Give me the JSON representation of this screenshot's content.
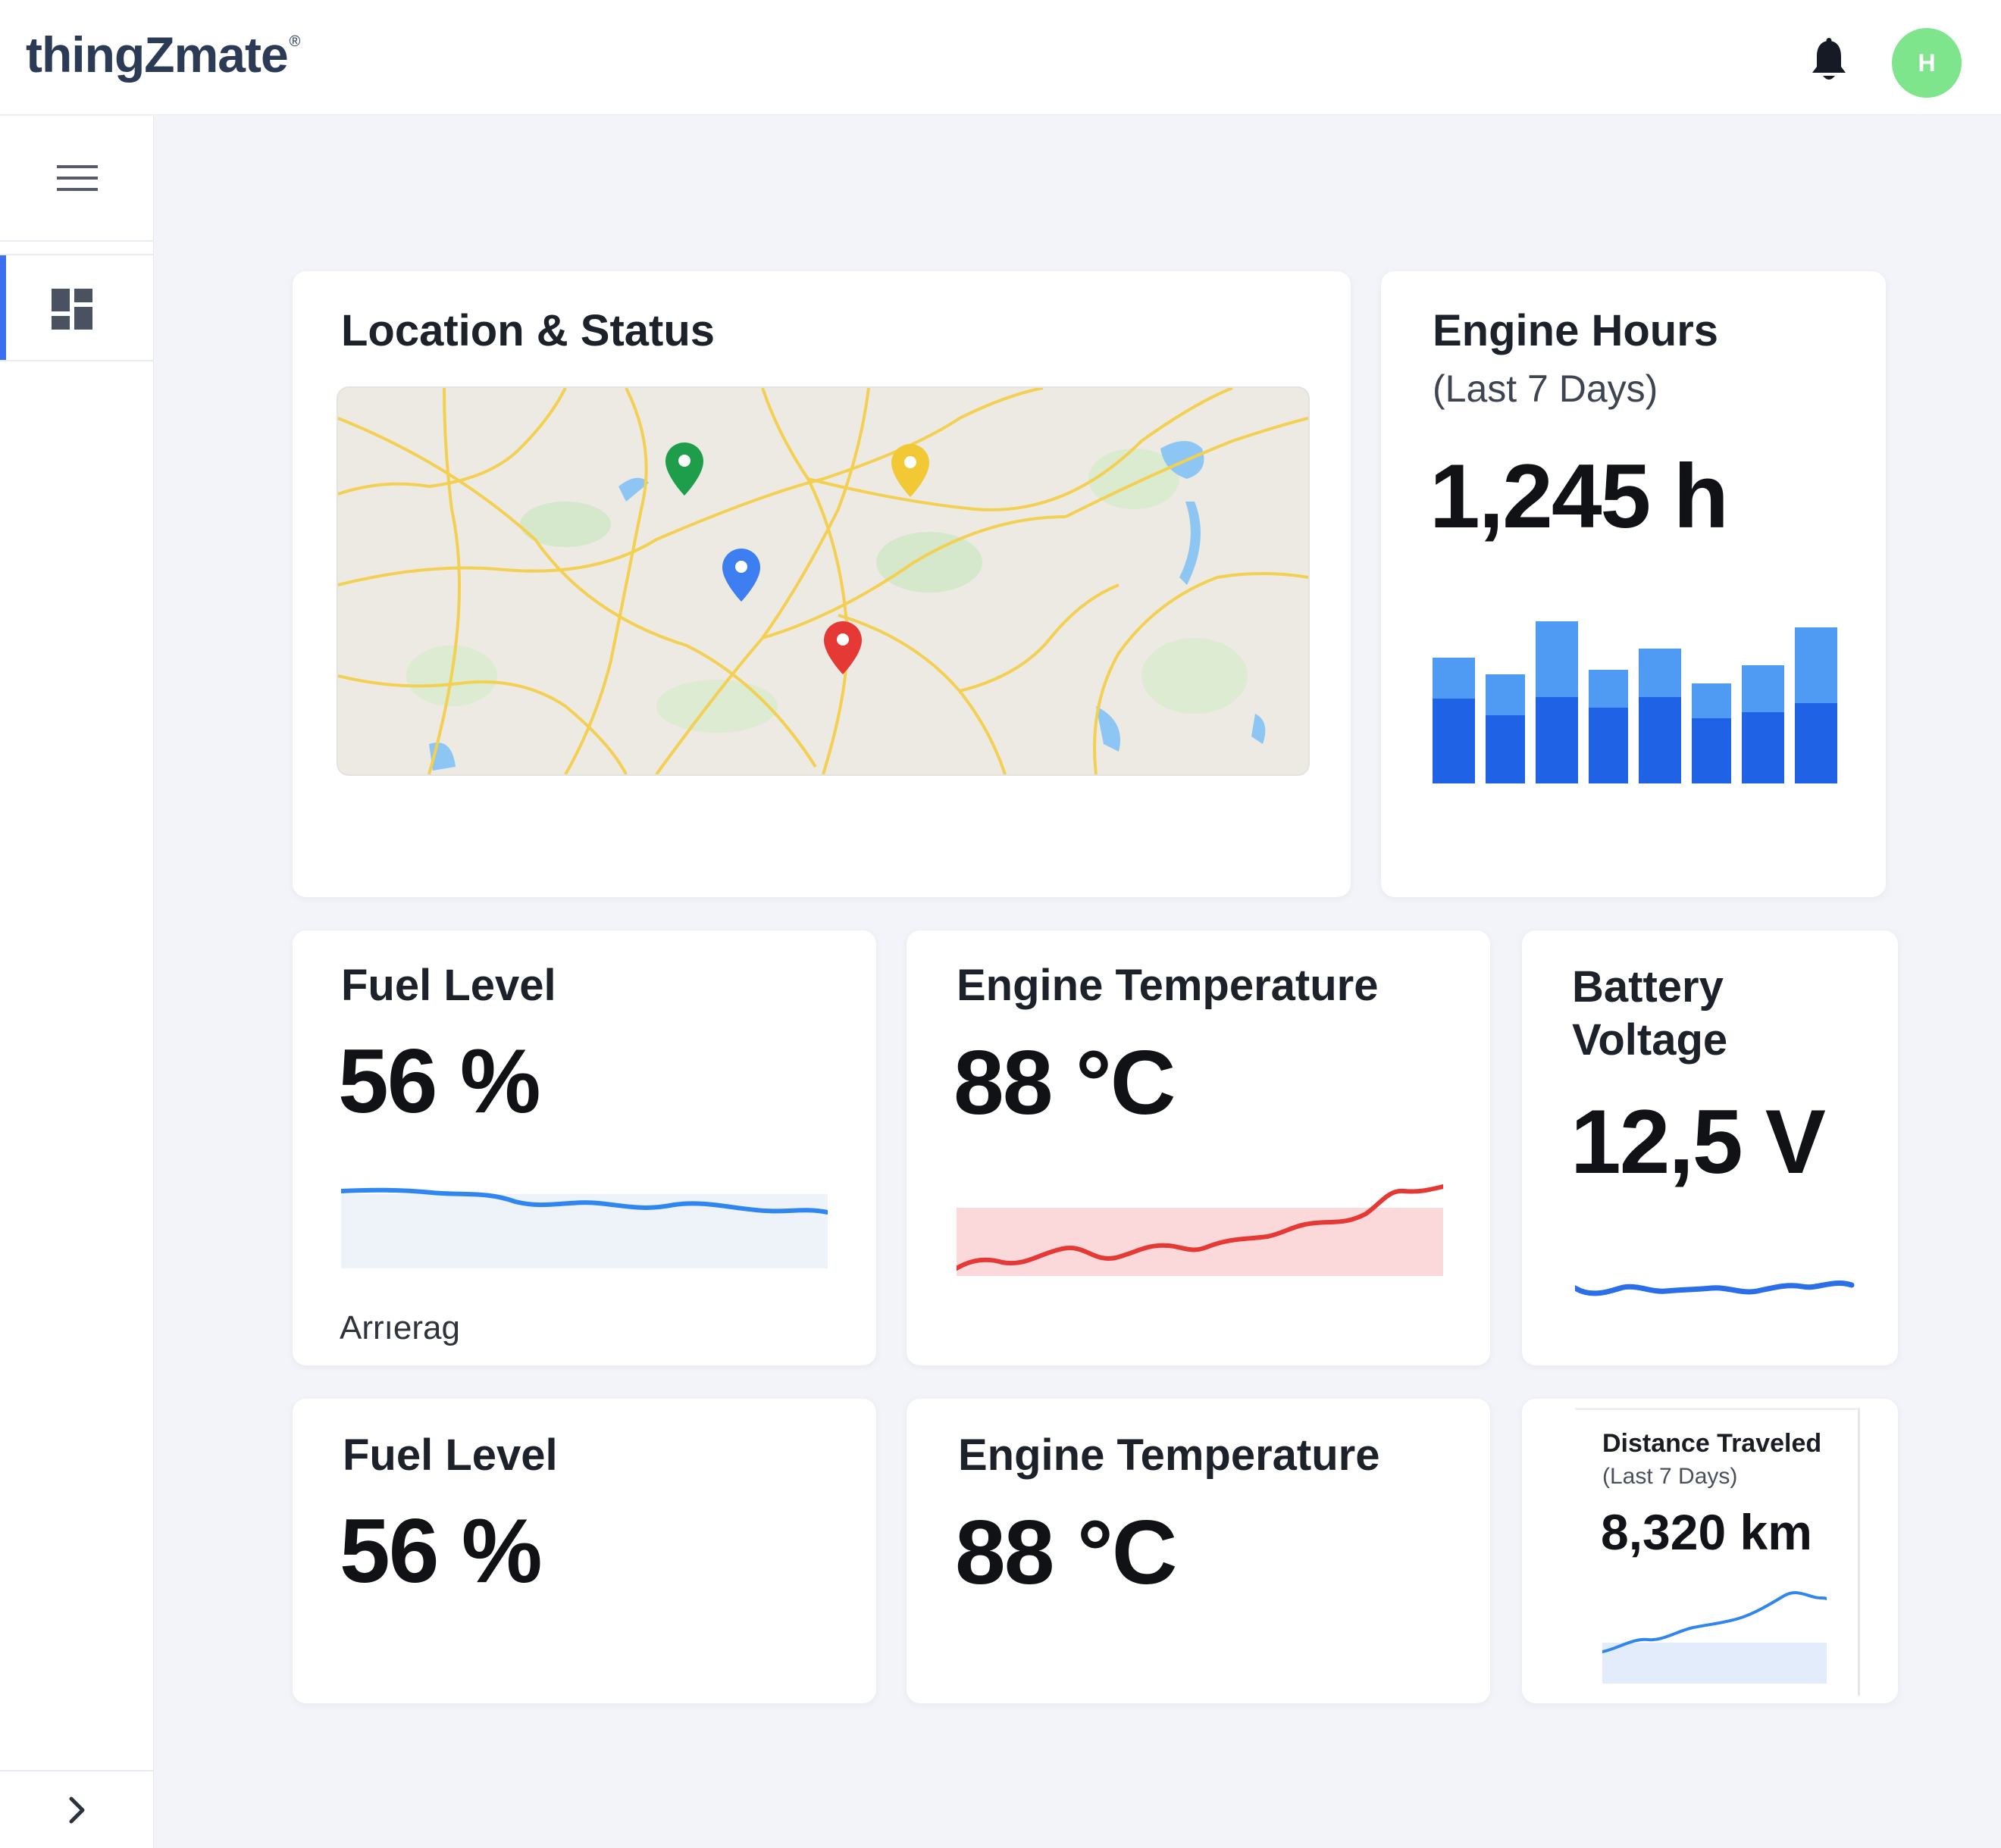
{
  "header": {
    "logo_text": "thingZmate",
    "logo_mark": "®",
    "notifications_icon": "bell-icon",
    "avatar_initial": "H",
    "avatar_color": "#7ee58d"
  },
  "sidebar": {
    "menu_icon": "hamburger-icon",
    "items": [
      {
        "icon": "dashboard-icon",
        "active": true
      }
    ],
    "expand_icon": "chevron-right-icon",
    "accent_color": "#3b6ff0"
  },
  "cards": {
    "location": {
      "title": "Location & Status",
      "markers": [
        {
          "color": "#1e9e4a",
          "icon": "map-pin-icon"
        },
        {
          "color": "#f2c935",
          "icon": "map-pin-icon"
        },
        {
          "color": "#3d7ff0",
          "icon": "map-pin-icon"
        },
        {
          "color": "#e53935",
          "icon": "map-pin-icon"
        }
      ]
    },
    "engine_hours": {
      "title": "Engine Hours",
      "subtitle": "(Last 7 Days)",
      "value": "1,245 h"
    },
    "fuel_level": {
      "title": "Fuel Level",
      "value": "56 %",
      "footer": "Arrıerag"
    },
    "engine_temperature": {
      "title": "Engine Temperature",
      "value": "88 °C"
    },
    "battery_voltage": {
      "title": "Battery Voltage",
      "value": "12,5 V"
    },
    "fuel_level_2": {
      "title": "Fuel Level",
      "value": "56 %"
    },
    "engine_temperature_2": {
      "title": "Engine Temperature",
      "value": "88 °C"
    },
    "distance": {
      "title": "Distance Traveled",
      "subtitle": "(Last 7 Days)",
      "value": "8,320 km"
    }
  },
  "colors": {
    "bar_dark": "#1f62e6",
    "bar_light": "#4f9af3",
    "fuel_line": "#2f86f0",
    "temp_line": "#e53935",
    "temp_fill": "#fbd9da",
    "battery_line": "#2a6ee8"
  }
}
